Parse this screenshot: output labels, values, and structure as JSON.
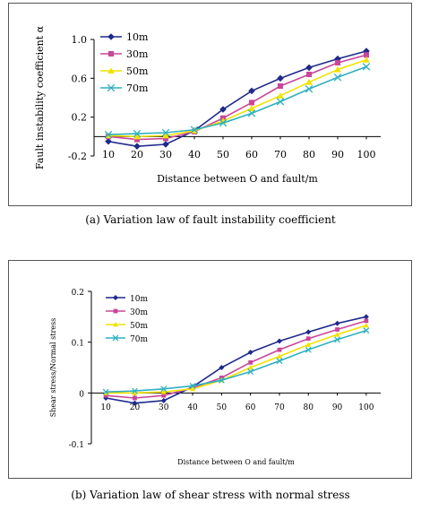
{
  "chart_data": [
    {
      "type": "line",
      "ylabel": "Fault instability coefficient α",
      "xlabel": "Distance between O and fault/m",
      "categories": [
        "10",
        "20",
        "30",
        "40",
        "50",
        "60",
        "70",
        "80",
        "90",
        "100"
      ],
      "y_ticks": [
        "1.0",
        "0.6",
        "0.2",
        "-0.2"
      ],
      "ylim": [
        -0.2,
        1.0
      ],
      "legend_position": "top-left",
      "series": [
        {
          "name": "10m",
          "color": "#1f2a8c",
          "marker": "diamond",
          "values": [
            -0.05,
            -0.1,
            -0.08,
            0.06,
            0.28,
            0.47,
            0.6,
            0.71,
            0.8,
            0.88
          ]
        },
        {
          "name": "30m",
          "color": "#c8479a",
          "marker": "square",
          "values": [
            0.0,
            -0.03,
            -0.02,
            0.05,
            0.19,
            0.35,
            0.52,
            0.64,
            0.76,
            0.84
          ]
        },
        {
          "name": "50m",
          "color": "#f2e200",
          "marker": "triangle",
          "values": [
            0.01,
            0.0,
            0.01,
            0.06,
            0.16,
            0.29,
            0.42,
            0.56,
            0.69,
            0.79
          ]
        },
        {
          "name": "70m",
          "color": "#2fb0c0",
          "marker": "x",
          "values": [
            0.02,
            0.03,
            0.04,
            0.07,
            0.14,
            0.24,
            0.36,
            0.49,
            0.61,
            0.72
          ]
        }
      ]
    },
    {
      "type": "line",
      "ylabel": "Shear stress/Normal stress",
      "xlabel": "Distance between O and fault/m",
      "categories": [
        "10",
        "20",
        "30",
        "40",
        "50",
        "60",
        "70",
        "80",
        "90",
        "100"
      ],
      "y_ticks": [
        "0.2",
        "0.1",
        "0",
        "-0.1"
      ],
      "ylim": [
        -0.1,
        0.2
      ],
      "legend_position": "top-left",
      "series": [
        {
          "name": "10m",
          "color": "#1f2a8c",
          "marker": "diamond",
          "values": [
            -0.01,
            -0.02,
            -0.015,
            0.012,
            0.05,
            0.08,
            0.102,
            0.12,
            0.137,
            0.15
          ]
        },
        {
          "name": "30m",
          "color": "#c8479a",
          "marker": "square",
          "values": [
            -0.005,
            -0.01,
            -0.005,
            0.01,
            0.03,
            0.06,
            0.085,
            0.107,
            0.125,
            0.142
          ]
        },
        {
          "name": "50m",
          "color": "#f2e200",
          "marker": "triangle",
          "values": [
            0.0,
            0.0,
            0.002,
            0.008,
            0.025,
            0.05,
            0.072,
            0.095,
            0.115,
            0.133
          ]
        },
        {
          "name": "70m",
          "color": "#2fb0c0",
          "marker": "x",
          "values": [
            0.002,
            0.004,
            0.008,
            0.014,
            0.025,
            0.042,
            0.063,
            0.085,
            0.105,
            0.123
          ]
        }
      ]
    }
  ],
  "captions": {
    "a": "(a) Variation law of fault instability coefficient",
    "b": "(b) Variation law of shear stress with normal stress"
  }
}
